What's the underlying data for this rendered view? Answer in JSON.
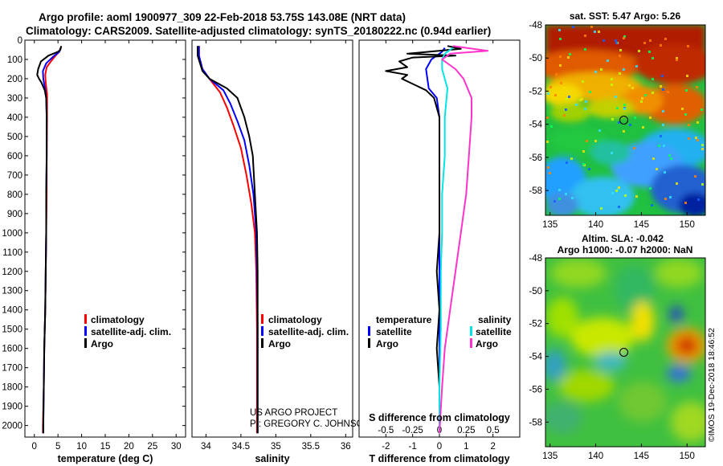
{
  "header": {
    "title_line1": "Argo profile: aoml 1900977_309 22-Feb-2018 53.75S 143.08E (NRT data)",
    "title_line2": "Climatology: CARS2009. Satellite-adjusted climatology: synTS_20180222.nc (0.94d earlier)"
  },
  "credits": {
    "project": "US ARGO PROJECT",
    "pi": "PI: GREGORY C. JOHNSON",
    "stamp": "©IMOS 19-Dec-2018 18:46:52"
  },
  "colors": {
    "climatology": "#ff0000",
    "satellite": "#0000ff",
    "argo": "#000000",
    "satellite_salinity": "#00e5e5",
    "argo_salinity": "#ff33cc"
  },
  "depth_axis": {
    "ticks": [
      "0",
      "100",
      "200",
      "300",
      "400",
      "500",
      "600",
      "700",
      "800",
      "900",
      "1000",
      "1100",
      "1200",
      "1300",
      "1400",
      "1500",
      "1600",
      "1700",
      "1800",
      "1900",
      "2000"
    ]
  },
  "chart_data": [
    {
      "type": "line",
      "name": "temperature-profile",
      "xlabel": "temperature (deg C)",
      "xlim": [
        -2,
        32
      ],
      "ylim": [
        2060,
        0
      ],
      "xticks": [
        0,
        5,
        10,
        15,
        20,
        25,
        30
      ],
      "xtick_labels": [
        "0",
        "5",
        "10",
        "15",
        "20",
        "25",
        "30"
      ],
      "legend": {
        "placement": "bottom-right",
        "entries": [
          "climatology",
          "satellite-adj. clim.",
          "Argo"
        ]
      },
      "series": [
        {
          "name": "climatology",
          "color": "#ff0000",
          "points": [
            [
              5.5,
              40
            ],
            [
              5.3,
              60
            ],
            [
              4.5,
              80
            ],
            [
              3.5,
              110
            ],
            [
              2.6,
              140
            ],
            [
              2.3,
              180
            ],
            [
              2.4,
              220
            ],
            [
              2.7,
              280
            ],
            [
              2.7,
              400
            ],
            [
              2.6,
              600
            ],
            [
              2.6,
              800
            ],
            [
              2.5,
              1000
            ],
            [
              2.4,
              1200
            ],
            [
              2.3,
              1400
            ],
            [
              2.1,
              1600
            ],
            [
              2.0,
              1800
            ],
            [
              1.8,
              2000
            ],
            [
              1.8,
              2040
            ]
          ]
        },
        {
          "name": "satellite-adj. clim.",
          "color": "#0000ff",
          "points": [
            [
              5.6,
              40
            ],
            [
              5.3,
              60
            ],
            [
              4.0,
              85
            ],
            [
              2.5,
              120
            ],
            [
              1.8,
              160
            ],
            [
              1.9,
              200
            ],
            [
              2.3,
              260
            ],
            [
              2.5,
              300
            ],
            [
              2.6,
              400
            ],
            [
              2.6,
              600
            ],
            [
              2.5,
              800
            ],
            [
              2.5,
              1000
            ],
            [
              2.4,
              1200
            ],
            [
              2.3,
              1400
            ],
            [
              2.1,
              1600
            ],
            [
              2.0,
              1800
            ],
            [
              1.9,
              2000
            ],
            [
              1.9,
              2040
            ]
          ]
        },
        {
          "name": "Argo",
          "color": "#000000",
          "points": [
            [
              5.7,
              30
            ],
            [
              5.5,
              50
            ],
            [
              5.0,
              60
            ],
            [
              3.0,
              80
            ],
            [
              1.4,
              110
            ],
            [
              0.8,
              150
            ],
            [
              0.6,
              180
            ],
            [
              1.0,
              200
            ],
            [
              1.5,
              220
            ],
            [
              2.2,
              260
            ],
            [
              2.5,
              300
            ],
            [
              2.6,
              400
            ],
            [
              2.6,
              600
            ],
            [
              2.5,
              800
            ],
            [
              2.5,
              1000
            ],
            [
              2.4,
              1200
            ],
            [
              2.3,
              1400
            ],
            [
              2.1,
              1600
            ],
            [
              2.0,
              1800
            ],
            [
              1.9,
              2000
            ],
            [
              1.9,
              2040
            ]
          ]
        }
      ]
    },
    {
      "type": "line",
      "name": "salinity-profile",
      "xlabel": "salinity",
      "xlim": [
        33.8,
        36.1
      ],
      "ylim": [
        2060,
        0
      ],
      "xticks": [
        34,
        34.5,
        35,
        35.5,
        36
      ],
      "xtick_labels": [
        "34",
        "34.5",
        "35",
        "35.5",
        "36"
      ],
      "legend": {
        "placement": "bottom-right",
        "entries": [
          "climatology",
          "satellite-adj. clim.",
          "Argo"
        ]
      },
      "series": [
        {
          "name": "climatology",
          "color": "#ff0000",
          "points": [
            [
              33.9,
              30
            ],
            [
              33.9,
              80
            ],
            [
              33.95,
              150
            ],
            [
              34.05,
              200
            ],
            [
              34.2,
              270
            ],
            [
              34.3,
              350
            ],
            [
              34.4,
              450
            ],
            [
              34.5,
              560
            ],
            [
              34.58,
              700
            ],
            [
              34.65,
              850
            ],
            [
              34.7,
              1000
            ],
            [
              34.72,
              1200
            ],
            [
              34.73,
              1500
            ],
            [
              34.73,
              2040
            ]
          ]
        },
        {
          "name": "satellite-adj. clim.",
          "color": "#0000ff",
          "points": [
            [
              33.9,
              30
            ],
            [
              33.9,
              80
            ],
            [
              33.95,
              150
            ],
            [
              34.05,
              200
            ],
            [
              34.25,
              260
            ],
            [
              34.35,
              330
            ],
            [
              34.45,
              420
            ],
            [
              34.55,
              520
            ],
            [
              34.62,
              650
            ],
            [
              34.68,
              800
            ],
            [
              34.72,
              1000
            ],
            [
              34.73,
              1200
            ],
            [
              34.74,
              1500
            ],
            [
              34.74,
              2040
            ]
          ]
        },
        {
          "name": "Argo",
          "color": "#000000",
          "points": [
            [
              33.88,
              30
            ],
            [
              33.88,
              80
            ],
            [
              33.95,
              160
            ],
            [
              34.05,
              200
            ],
            [
              34.3,
              250
            ],
            [
              34.45,
              300
            ],
            [
              34.55,
              400
            ],
            [
              34.62,
              500
            ],
            [
              34.67,
              600
            ],
            [
              34.7,
              800
            ],
            [
              34.73,
              1000
            ],
            [
              34.74,
              1200
            ],
            [
              34.74,
              1500
            ],
            [
              34.74,
              2040
            ]
          ]
        }
      ]
    },
    {
      "type": "line",
      "name": "difference-profile",
      "xlabel": "T difference from climatology",
      "xlabel_top": "S difference from climatology",
      "xlim": [
        -3,
        3
      ],
      "ylim": [
        2060,
        0
      ],
      "xticks": [
        -2,
        -1,
        0,
        1,
        2
      ],
      "xtick_labels": [
        "-2",
        "-1",
        "0",
        "1",
        "2"
      ],
      "s_xticks": [
        -0.5,
        -0.25,
        0,
        0.25,
        0.5
      ],
      "s_xtick_labels": [
        "-0.5",
        "-0.25",
        "0",
        "0.25",
        "0.5"
      ],
      "legend_left": {
        "title": "temperature",
        "placement": "bottom-left",
        "entries": [
          "satellite",
          "Argo"
        ]
      },
      "legend_right": {
        "title": "salinity",
        "placement": "bottom-right",
        "entries": [
          "satellite",
          "Argo"
        ]
      },
      "series": [
        {
          "name": "T satellite",
          "color": "#0000ff",
          "points": [
            [
              0.2,
              40
            ],
            [
              0.1,
              60
            ],
            [
              -0.3,
              100
            ],
            [
              -0.5,
              150
            ],
            [
              -0.4,
              250
            ],
            [
              -0.1,
              300
            ],
            [
              0,
              400
            ],
            [
              0,
              600
            ],
            [
              0,
              1000
            ],
            [
              0,
              1400
            ],
            [
              0,
              1800
            ],
            [
              0,
              2040
            ]
          ]
        },
        {
          "name": "T Argo",
          "color": "#000000",
          "points": [
            [
              0.3,
              30
            ],
            [
              0.8,
              45
            ],
            [
              -1.2,
              70
            ],
            [
              0.6,
              80
            ],
            [
              -1.0,
              90
            ],
            [
              -1.5,
              110
            ],
            [
              -1.2,
              140
            ],
            [
              -2.0,
              160
            ],
            [
              -1.2,
              180
            ],
            [
              -1.4,
              200
            ],
            [
              -0.5,
              260
            ],
            [
              -0.2,
              300
            ],
            [
              0,
              400
            ],
            [
              0,
              700
            ],
            [
              0,
              1000
            ],
            [
              -0.1,
              1200
            ],
            [
              0,
              1400
            ],
            [
              -0.1,
              1600
            ],
            [
              0,
              1800
            ],
            [
              0,
              2040
            ]
          ]
        },
        {
          "name": "S satellite",
          "color": "#00e5e5",
          "points": [
            [
              0.5,
              40
            ],
            [
              0.2,
              70
            ],
            [
              0.1,
              100
            ],
            [
              0.1,
              150
            ],
            [
              0.3,
              250
            ],
            [
              0.2,
              400
            ],
            [
              0.2,
              600
            ],
            [
              0.1,
              800
            ],
            [
              0.1,
              1000
            ],
            [
              0.05,
              1200
            ],
            [
              0.05,
              1500
            ],
            [
              0,
              1800
            ],
            [
              0,
              2040
            ]
          ]
        },
        {
          "name": "S Argo",
          "color": "#ff33cc",
          "points": [
            [
              0.5,
              30
            ],
            [
              1.8,
              55
            ],
            [
              0.4,
              70
            ],
            [
              0.1,
              100
            ],
            [
              0.6,
              150
            ],
            [
              0.9,
              200
            ],
            [
              1.2,
              300
            ],
            [
              1.2,
              400
            ],
            [
              1.1,
              600
            ],
            [
              1.0,
              800
            ],
            [
              0.8,
              1000
            ],
            [
              0.6,
              1200
            ],
            [
              0.4,
              1400
            ],
            [
              0.2,
              1600
            ],
            [
              0.1,
              1800
            ],
            [
              0,
              2040
            ]
          ]
        }
      ]
    },
    {
      "type": "heatmap",
      "name": "sst-map",
      "title": "sat. SST: 5.47 Argo: 5.26",
      "xlim": [
        134.5,
        152
      ],
      "ylim": [
        -59.5,
        -48
      ],
      "xticks": [
        135,
        140,
        145,
        150
      ],
      "yticks": [
        -48,
        -50,
        -52,
        -54,
        -56,
        -58
      ],
      "ytick_labels": [
        "-48",
        "-50",
        "-52",
        "-54",
        "-56",
        "-58"
      ],
      "marker": {
        "lon": 143.08,
        "lat": -53.75
      }
    },
    {
      "type": "heatmap",
      "name": "sla-map",
      "title_line1": "Altim. SLA: -0.042",
      "title_line2": "Argo h1000: -0.07 h2000: NaN",
      "xlim": [
        134.5,
        152
      ],
      "ylim": [
        -59.5,
        -48
      ],
      "xticks": [
        135,
        140,
        145,
        150
      ],
      "yticks": [
        -48,
        -50,
        -52,
        -54,
        -56,
        -58
      ],
      "ytick_labels": [
        "-48",
        "-50",
        "-52",
        "-54",
        "-56",
        "-58"
      ],
      "marker": {
        "lon": 143.08,
        "lat": -53.75
      }
    }
  ]
}
